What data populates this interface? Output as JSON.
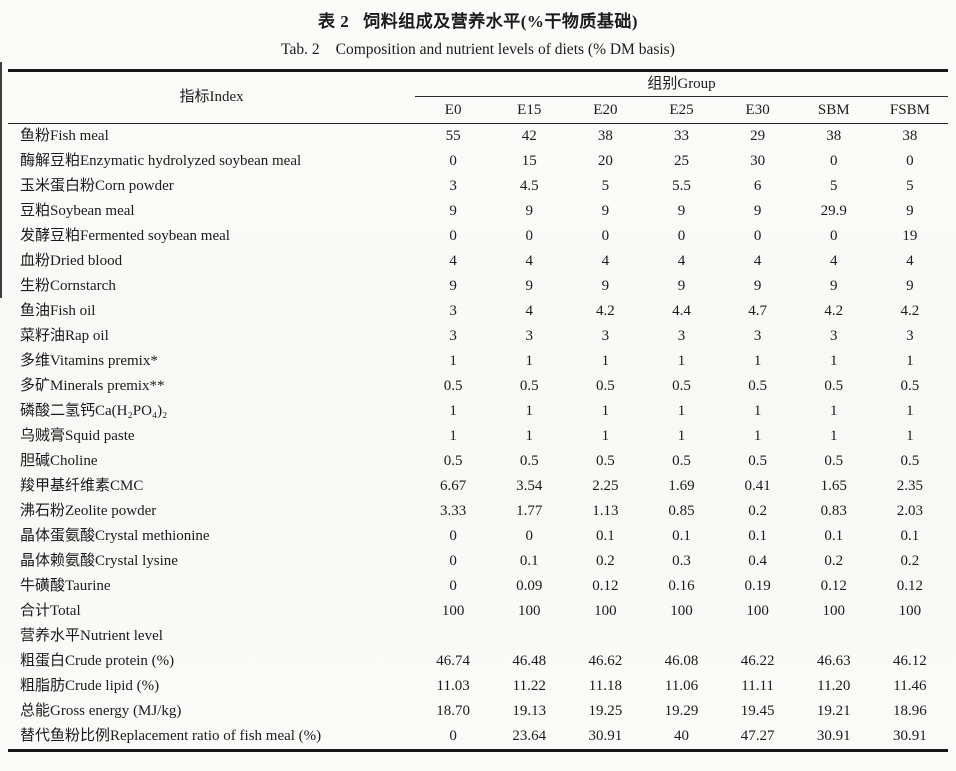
{
  "titles": {
    "zh_label": "表 2",
    "zh_text": "饲料组成及营养水平(%干物质基础)",
    "en_label": "Tab. 2",
    "en_text": "Composition and nutrient levels of diets (% DM basis)"
  },
  "table": {
    "index_header": "指标Index",
    "group_header": "组别Group",
    "columns": [
      "E0",
      "E15",
      "E20",
      "E25",
      "E30",
      "SBM",
      "FSBM"
    ],
    "rows": [
      {
        "label": "鱼粉Fish meal",
        "values": [
          "55",
          "42",
          "38",
          "33",
          "29",
          "38",
          "38"
        ]
      },
      {
        "label": "酶解豆粕Enzymatic hydrolyzed soybean meal",
        "values": [
          "0",
          "15",
          "20",
          "25",
          "30",
          "0",
          "0"
        ]
      },
      {
        "label": "玉米蛋白粉Corn powder",
        "values": [
          "3",
          "4.5",
          "5",
          "5.5",
          "6",
          "5",
          "5"
        ]
      },
      {
        "label": "豆粕Soybean meal",
        "values": [
          "9",
          "9",
          "9",
          "9",
          "9",
          "29.9",
          "9"
        ]
      },
      {
        "label": "发酵豆粕Fermented soybean meal",
        "values": [
          "0",
          "0",
          "0",
          "0",
          "0",
          "0",
          "19"
        ]
      },
      {
        "label": "血粉Dried blood",
        "values": [
          "4",
          "4",
          "4",
          "4",
          "4",
          "4",
          "4"
        ]
      },
      {
        "label": "生粉Cornstarch",
        "values": [
          "9",
          "9",
          "9",
          "9",
          "9",
          "9",
          "9"
        ]
      },
      {
        "label": "鱼油Fish oil",
        "values": [
          "3",
          "4",
          "4.2",
          "4.4",
          "4.7",
          "4.2",
          "4.2"
        ]
      },
      {
        "label": "菜籽油Rap oil",
        "values": [
          "3",
          "3",
          "3",
          "3",
          "3",
          "3",
          "3"
        ]
      },
      {
        "label": "多维Vitamins premix*",
        "values": [
          "1",
          "1",
          "1",
          "1",
          "1",
          "1",
          "1"
        ]
      },
      {
        "label": "多矿Minerals premix**",
        "values": [
          "0.5",
          "0.5",
          "0.5",
          "0.5",
          "0.5",
          "0.5",
          "0.5"
        ]
      },
      {
        "label": "磷酸二氢钙Ca(H₂PO₄)₂",
        "values": [
          "1",
          "1",
          "1",
          "1",
          "1",
          "1",
          "1"
        ]
      },
      {
        "label": "乌贼膏Squid paste",
        "values": [
          "1",
          "1",
          "1",
          "1",
          "1",
          "1",
          "1"
        ]
      },
      {
        "label": "胆碱Choline",
        "values": [
          "0.5",
          "0.5",
          "0.5",
          "0.5",
          "0.5",
          "0.5",
          "0.5"
        ]
      },
      {
        "label": "羧甲基纤维素CMC",
        "values": [
          "6.67",
          "3.54",
          "2.25",
          "1.69",
          "0.41",
          "1.65",
          "2.35"
        ]
      },
      {
        "label": "沸石粉Zeolite powder",
        "values": [
          "3.33",
          "1.77",
          "1.13",
          "0.85",
          "0.2",
          "0.83",
          "2.03"
        ]
      },
      {
        "label": "晶体蛋氨酸Crystal methionine",
        "values": [
          "0",
          "0",
          "0.1",
          "0.1",
          "0.1",
          "0.1",
          "0.1"
        ]
      },
      {
        "label": "晶体赖氨酸Crystal lysine",
        "values": [
          "0",
          "0.1",
          "0.2",
          "0.3",
          "0.4",
          "0.2",
          "0.2"
        ]
      },
      {
        "label": "牛磺酸Taurine",
        "values": [
          "0",
          "0.09",
          "0.12",
          "0.16",
          "0.19",
          "0.12",
          "0.12"
        ]
      },
      {
        "label": "合计Total",
        "values": [
          "100",
          "100",
          "100",
          "100",
          "100",
          "100",
          "100"
        ]
      },
      {
        "label": "营养水平Nutrient level",
        "section": true,
        "values": [
          "",
          "",
          "",
          "",
          "",
          "",
          ""
        ]
      },
      {
        "label": "粗蛋白Crude protein (%)",
        "values": [
          "46.74",
          "46.48",
          "46.62",
          "46.08",
          "46.22",
          "46.63",
          "46.12"
        ]
      },
      {
        "label": "粗脂肪Crude lipid (%)",
        "values": [
          "11.03",
          "11.22",
          "11.18",
          "11.06",
          "11.11",
          "11.20",
          "11.46"
        ]
      },
      {
        "label": "总能Gross energy (MJ/kg)",
        "values": [
          "18.70",
          "19.13",
          "19.25",
          "19.29",
          "19.45",
          "19.21",
          "18.96"
        ]
      },
      {
        "label": "替代鱼粉比例Replacement ratio of fish meal (%)",
        "values": [
          "0",
          "23.64",
          "30.91",
          "40",
          "47.27",
          "30.91",
          "30.91"
        ]
      }
    ]
  }
}
